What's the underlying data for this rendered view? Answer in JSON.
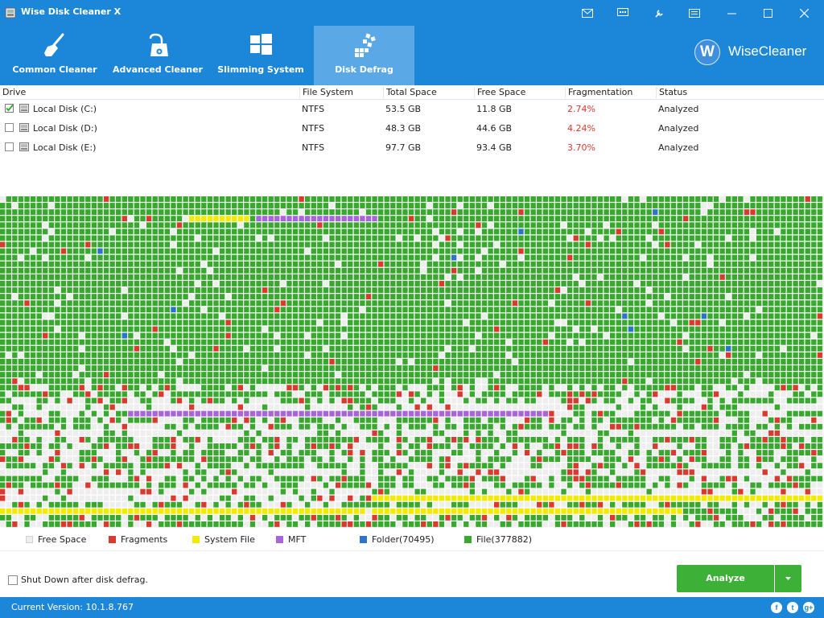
{
  "app": {
    "title": "Wise Disk Cleaner X",
    "version_label": "Current Version: 10.1.8.767",
    "brand": "WiseCleaner",
    "brand_mark": "W"
  },
  "titlebar_buttons": [
    "mail-icon",
    "feedback-icon",
    "settings-icon",
    "menu-icon",
    "minimize-icon",
    "maximize-icon",
    "close-icon"
  ],
  "tabs": [
    {
      "label": "Common Cleaner",
      "icon": "broom-icon",
      "active": false
    },
    {
      "label": "Advanced Cleaner",
      "icon": "vacuum-icon",
      "active": false
    },
    {
      "label": "Slimming System",
      "icon": "windows-icon",
      "active": false
    },
    {
      "label": "Disk Defrag",
      "icon": "defrag-icon",
      "active": true
    }
  ],
  "table": {
    "columns": [
      "Drive",
      "File System",
      "Total Space",
      "Free Space",
      "Fragmentation",
      "Status"
    ],
    "rows": [
      {
        "checked": true,
        "drive": "Local Disk (C:)",
        "fs": "NTFS",
        "total": "53.5 GB",
        "free": "11.8 GB",
        "frag": "2.74%",
        "status": "Analyzed"
      },
      {
        "checked": false,
        "drive": "Local Disk (D:)",
        "fs": "NTFS",
        "total": "48.3 GB",
        "free": "44.6 GB",
        "frag": "4.24%",
        "status": "Analyzed"
      },
      {
        "checked": false,
        "drive": "Local Disk (E:)",
        "fs": "NTFS",
        "total": "97.7 GB",
        "free": "93.4 GB",
        "frag": "3.70%",
        "status": "Analyzed"
      }
    ]
  },
  "legend": [
    {
      "label": "Free Space",
      "color": "#eeeeee"
    },
    {
      "label": "Fragments",
      "color": "#d93a2f"
    },
    {
      "label": "System File",
      "color": "#f2ea00"
    },
    {
      "label": "MFT",
      "color": "#a765d8"
    },
    {
      "label": "Folder(70495)",
      "color": "#2f72cc"
    },
    {
      "label": "File(377882)",
      "color": "#38a82f"
    }
  ],
  "shutdown_label": "Shut Down after disk defrag.",
  "shutdown_checked": false,
  "analyze_label": "Analyze",
  "social": [
    "facebook-icon",
    "twitter-icon",
    "google-plus-icon"
  ],
  "colors": {
    "header": "#1c87d8",
    "active_tab": "#5aa9e6",
    "file": "#38a82f",
    "free": "#eeeeee",
    "fragment": "#d93a2f",
    "system": "#f2ea00",
    "mft": "#a765d8",
    "folder": "#2f72cc",
    "button": "#3db037"
  }
}
